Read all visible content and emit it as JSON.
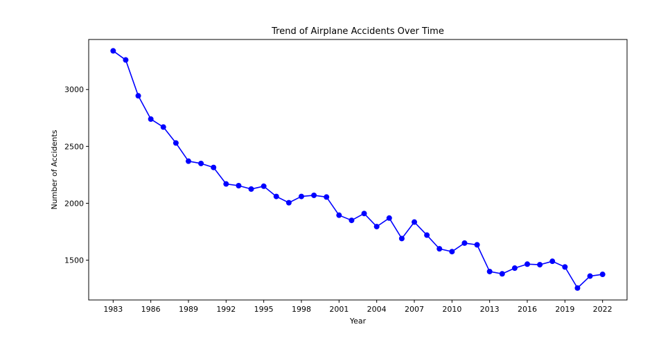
{
  "chart_data": {
    "type": "line",
    "title": "Trend of Airplane Accidents Over Time",
    "xlabel": "Year",
    "ylabel": "Number of Accidents",
    "x": [
      1983,
      1984,
      1985,
      1986,
      1987,
      1988,
      1989,
      1990,
      1991,
      1992,
      1993,
      1994,
      1995,
      1996,
      1997,
      1998,
      1999,
      2000,
      2001,
      2002,
      2003,
      2004,
      2005,
      2006,
      2007,
      2008,
      2009,
      2010,
      2011,
      2012,
      2013,
      2014,
      2015,
      2016,
      2017,
      2018,
      2019,
      2020,
      2021,
      2022
    ],
    "y": [
      3340,
      3260,
      2945,
      2740,
      2670,
      2530,
      2370,
      2350,
      2315,
      2170,
      2155,
      2125,
      2150,
      2060,
      2005,
      2060,
      2070,
      2055,
      1895,
      1850,
      1910,
      1795,
      1870,
      1690,
      1835,
      1720,
      1600,
      1575,
      1650,
      1635,
      1400,
      1380,
      1430,
      1465,
      1460,
      1490,
      1440,
      1255,
      1360,
      1375
    ],
    "xticks": [
      1983,
      1986,
      1989,
      1992,
      1995,
      1998,
      2001,
      2004,
      2007,
      2010,
      2013,
      2016,
      2019,
      2022
    ],
    "yticks": [
      1500,
      2000,
      2500,
      3000
    ],
    "xlim": [
      1981.05,
      2023.95
    ],
    "ylim": [
      1150,
      3440
    ],
    "line_color": "#0000ff",
    "marker": "circle",
    "grid": false
  }
}
